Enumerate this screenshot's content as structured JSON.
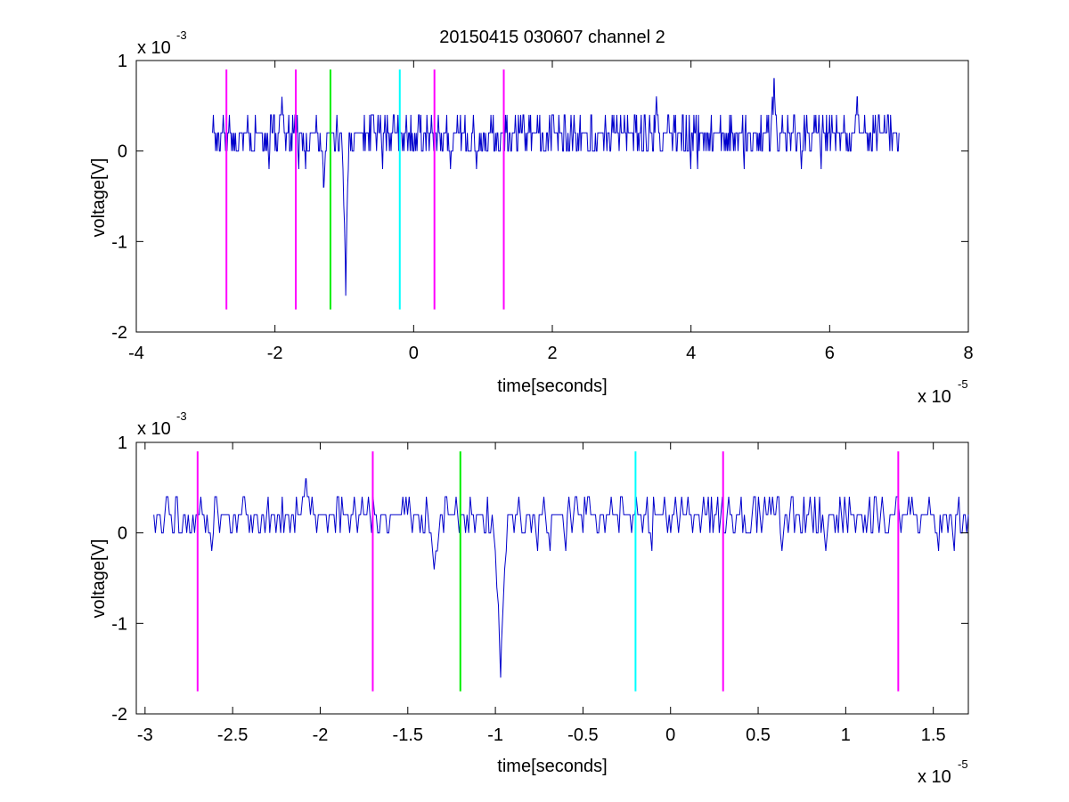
{
  "figure_title": "20150415 030607 channel 2",
  "colors": {
    "signal": "#0000cc",
    "magenta_marker": "#ff00ff",
    "green_marker": "#00ee00",
    "cyan_marker": "#00ffff",
    "axes": "#000000",
    "background": "#ffffff"
  },
  "chart_data": [
    {
      "type": "line",
      "title": "20150415 030607 channel 2",
      "xlabel": "time[seconds]",
      "ylabel": "voltage[V]",
      "x_multiplier_label": "x 10",
      "x_multiplier_exp": "-5",
      "y_multiplier_label": "x 10",
      "y_multiplier_exp": "-3",
      "xlim": [
        -4,
        8
      ],
      "ylim": [
        -2,
        1
      ],
      "xticks": [
        -4,
        -2,
        0,
        2,
        4,
        6,
        8
      ],
      "xtick_labels": [
        "-4",
        "-2",
        "0",
        "2",
        "4",
        "6",
        "8"
      ],
      "yticks": [
        -2,
        -1,
        0,
        1
      ],
      "ytick_labels": [
        "-2",
        "-1",
        "0",
        "1"
      ],
      "grid": false,
      "signal_range": [
        -2.9,
        7.0
      ],
      "noise_levels": [
        0.0,
        0.2,
        0.4
      ],
      "spikes": [
        {
          "x": -1.9,
          "y": 0.6
        },
        {
          "x": -1.3,
          "y": -0.4
        },
        {
          "x": -0.98,
          "y": -1.6
        },
        {
          "x": 5.2,
          "y": 0.8
        },
        {
          "x": 3.5,
          "y": 0.6
        },
        {
          "x": 6.4,
          "y": 0.6
        }
      ],
      "markers": [
        {
          "x": -2.7,
          "color": "magenta"
        },
        {
          "x": -1.7,
          "color": "magenta"
        },
        {
          "x": -1.2,
          "color": "green"
        },
        {
          "x": -0.2,
          "color": "cyan"
        },
        {
          "x": 0.3,
          "color": "magenta"
        },
        {
          "x": 1.3,
          "color": "magenta"
        }
      ],
      "marker_range": [
        -1.75,
        0.9
      ]
    },
    {
      "type": "line",
      "xlabel": "time[seconds]",
      "ylabel": "voltage[V]",
      "x_multiplier_label": "x 10",
      "x_multiplier_exp": "-5",
      "y_multiplier_label": "x 10",
      "y_multiplier_exp": "-3",
      "xlim": [
        -3.05,
        1.7
      ],
      "ylim": [
        -2,
        1
      ],
      "xticks": [
        -3,
        -2.5,
        -2,
        -1.5,
        -1,
        -0.5,
        0,
        0.5,
        1,
        1.5
      ],
      "xtick_labels": [
        "-3",
        "-2.5",
        "-2",
        "-1.5",
        "-1",
        "-0.5",
        "0",
        "0.5",
        "1",
        "1.5"
      ],
      "yticks": [
        -2,
        -1,
        0,
        1
      ],
      "ytick_labels": [
        "-2",
        "-1",
        "0",
        "1"
      ],
      "grid": false,
      "signal_range": [
        -2.95,
        1.7
      ],
      "noise_levels": [
        0.0,
        0.2,
        0.4
      ],
      "spikes": [
        {
          "x": -2.08,
          "y": 0.6
        },
        {
          "x": -1.35,
          "y": -0.4
        },
        {
          "x": -0.97,
          "y": -1.6
        }
      ],
      "markers": [
        {
          "x": -2.7,
          "color": "magenta"
        },
        {
          "x": -1.7,
          "color": "magenta"
        },
        {
          "x": -1.2,
          "color": "green"
        },
        {
          "x": -0.2,
          "color": "cyan"
        },
        {
          "x": 0.3,
          "color": "magenta"
        },
        {
          "x": 1.3,
          "color": "magenta"
        }
      ],
      "marker_range": [
        -1.75,
        0.9
      ]
    }
  ]
}
